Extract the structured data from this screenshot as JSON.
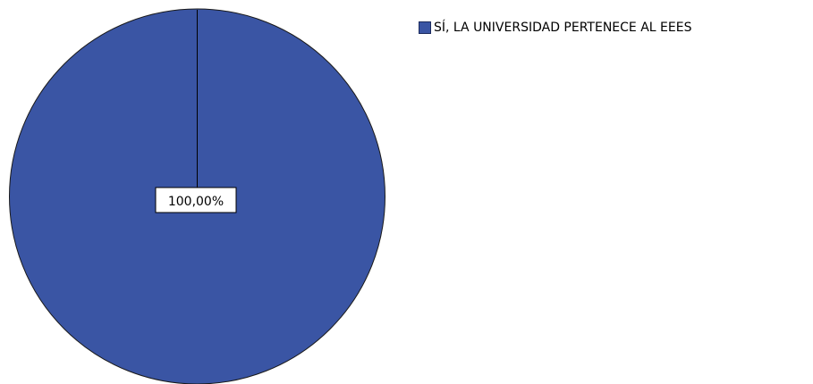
{
  "chart_data": {
    "type": "pie",
    "title": "",
    "slices": [
      {
        "label": "SÍ, LA UNIVERSIDAD PERTENECE AL EEES",
        "value": 100.0,
        "display": "100,00%",
        "color": "#3a55a4"
      }
    ],
    "legend_position": "top-right"
  },
  "legend": {
    "items": [
      {
        "label": "SÍ, LA UNIVERSIDAD PERTENECE AL EEES",
        "color": "#3a55a4"
      }
    ]
  }
}
